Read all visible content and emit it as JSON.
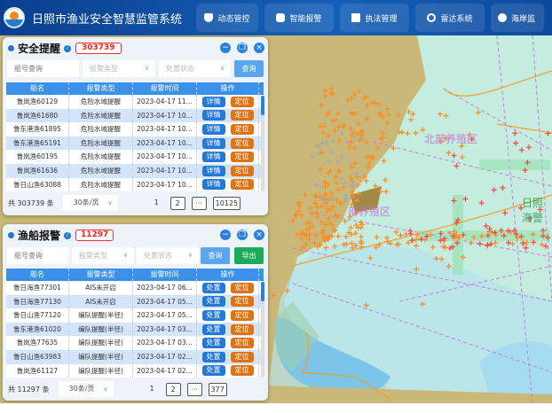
{
  "header": {
    "title": "日照市渔业安全智慧监管系统",
    "nav": [
      {
        "label": "动态管控",
        "icon": "shield-check-icon"
      },
      {
        "label": "智能报警",
        "icon": "alarm-icon"
      },
      {
        "label": "执法管理",
        "icon": "law-icon"
      },
      {
        "label": "雷达系统",
        "icon": "radar-icon"
      },
      {
        "label": "海岸监",
        "icon": "monitor-icon"
      }
    ]
  },
  "safety_panel": {
    "title": "安全提醒",
    "count": "303739",
    "filters": {
      "ship_placeholder": "船号查询",
      "type_placeholder": "报警类型",
      "status_placeholder": "处置状态",
      "query": "查询"
    },
    "columns": [
      "船名",
      "报警类型",
      "报警时间",
      "操作"
    ],
    "rows": [
      {
        "ship": "鲁岚渔60129",
        "type": "危险水域提醒",
        "time": "2023-04-17 11...",
        "a": "详情",
        "b": "定位"
      },
      {
        "ship": "鲁岚渔61680",
        "type": "危险水域提醒",
        "time": "2023-04-17 10...",
        "a": "详情",
        "b": "定位"
      },
      {
        "ship": "鲁东港渔61895",
        "type": "危险水域提醒",
        "time": "2023-04-17 10...",
        "a": "详情",
        "b": "定位"
      },
      {
        "ship": "鲁东港渔65191",
        "type": "危险水域提醒",
        "time": "2023-04-17 10...",
        "a": "详情",
        "b": "定位"
      },
      {
        "ship": "鲁岚渔60195",
        "type": "危险水域提醒",
        "time": "2023-04-17 10...",
        "a": "详情",
        "b": "定位"
      },
      {
        "ship": "鲁岚渔61636",
        "type": "危险水域提醒",
        "time": "2023-04-17 10...",
        "a": "详情",
        "b": "定位"
      },
      {
        "ship": "鲁日山渔63088",
        "type": "危险水域提醒",
        "time": "2023-04-17 10...",
        "a": "详情",
        "b": "定位"
      }
    ],
    "pager": {
      "total": "共 303739 条",
      "size": "30条/页",
      "pages": [
        "1",
        "2",
        "···",
        "10125"
      ]
    }
  },
  "alarm_panel": {
    "title": "渔船报警",
    "count": "11297",
    "filters": {
      "ship_placeholder": "船号查询",
      "type_placeholder": "报警类型",
      "status_placeholder": "处置状态",
      "query": "查询",
      "export": "导出"
    },
    "columns": [
      "船名",
      "报警类型",
      "报警时间",
      "操作"
    ],
    "rows": [
      {
        "ship": "鲁日海渔77301",
        "type": "AIS未开启",
        "time": "2023-04-17 06...",
        "a": "处置",
        "b": "定位"
      },
      {
        "ship": "鲁日海渔77130",
        "type": "AIS未开启",
        "time": "2023-04-17 05...",
        "a": "处置",
        "b": "定位"
      },
      {
        "ship": "鲁日山渔77120",
        "type": "编队提醒(半径)",
        "time": "2023-04-17 05...",
        "a": "处置",
        "b": "定位"
      },
      {
        "ship": "鲁东港渔61020",
        "type": "编队提醒(半径)",
        "time": "2023-04-17 03...",
        "a": "处置",
        "b": "定位"
      },
      {
        "ship": "鲁岚渔77635",
        "type": "编队提醒(半径)",
        "time": "2023-04-17 03...",
        "a": "处置",
        "b": "定位"
      },
      {
        "ship": "鲁日山渔63983",
        "type": "编队提醒(半径)",
        "time": "2023-04-17 02...",
        "a": "处置",
        "b": "定位"
      },
      {
        "ship": "鲁岚渔61127",
        "type": "编队提醒(半径)",
        "time": "2023-04-17 02...",
        "a": "处置",
        "b": "定位"
      }
    ],
    "pager": {
      "total": "共 11297 条",
      "size": "30条/页",
      "pages": [
        "1",
        "2",
        "···",
        "377"
      ]
    }
  },
  "map": {
    "labels": [
      "北部养殖区",
      "日照海警",
      "部养殖区"
    ]
  },
  "colors": {
    "header": "#1460b8",
    "primary": "#2578d6",
    "orange": "#e07212",
    "export": "#1aab5a",
    "badge": "#e33333"
  }
}
